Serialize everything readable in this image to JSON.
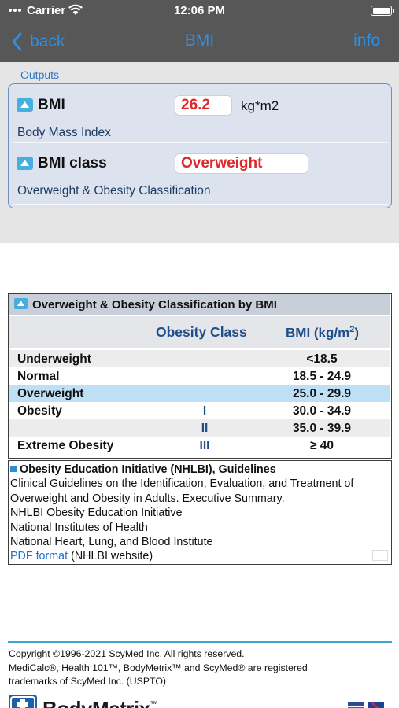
{
  "status_bar": {
    "carrier": "Carrier",
    "time": "12:06 PM"
  },
  "nav": {
    "back_label": "back",
    "title": "BMI",
    "info_label": "info"
  },
  "outputs": {
    "section_label": "Outputs",
    "items": [
      {
        "name": "BMI",
        "value": "26.2",
        "unit": "kg*m2",
        "description": "Body Mass Index"
      },
      {
        "name": "BMI class",
        "value": "Overweight",
        "unit": "",
        "description": "Overweight & Obesity Classification"
      }
    ]
  },
  "classification": {
    "title": "Overweight & Obesity Classification by BMI",
    "col_class": "Obesity Class",
    "col_bmi": "BMI (kg/m",
    "col_bmi_sup": "2",
    "col_bmi_close": ")",
    "highlighted_row": 2,
    "rows": [
      {
        "label": "Underweight",
        "class": "",
        "bmi": "<18.5"
      },
      {
        "label": "Normal",
        "class": "",
        "bmi": "18.5 - 24.9"
      },
      {
        "label": "Overweight",
        "class": "",
        "bmi": "25.0 - 29.9"
      },
      {
        "label": "Obesity",
        "class": "I",
        "bmi": "30.0 - 34.9"
      },
      {
        "label": "",
        "class": "II",
        "bmi": "35.0 - 39.9"
      },
      {
        "label": "Extreme Obesity",
        "class": "III",
        "bmi": "≥ 40"
      }
    ]
  },
  "references": {
    "title": "Obesity Education Initiative (NHLBI), Guidelines",
    "lines": [
      "Clinical Guidelines on the Identification, Evaluation, and Treatment of",
      "Overweight and Obesity in Adults. Executive Summary.",
      "NHLBI Obesity Education Initiative",
      "National Institutes of Health",
      "National Heart, Lung, and Blood Institute"
    ],
    "link_label": "PDF format",
    "link_suffix": " (NHLBI website)"
  },
  "footer": {
    "lines": [
      "Copyright ©1996-2021 ScyMed Inc. All rights reserved.",
      "MediCalc®, Health 101™, BodyMetrix™ and ScyMed® are registered",
      "trademarks of ScyMed Inc. (USPTO)"
    ],
    "brand": "BodyMetrix",
    "brand_tm": "™"
  },
  "colors": {
    "nav_bg": "#575757",
    "accent_blue": "#2f8fe0",
    "output_value_red": "#e0262a",
    "highlight_row": "#bde0f7",
    "class_text_blue": "#1f4e8c"
  },
  "icons": [
    "signal-dots-icon",
    "wifi-icon",
    "battery-icon",
    "chevron-left-icon",
    "triangle-up-icon",
    "square-bullet-icon",
    "bodymetrix-logo-icon",
    "flag-icon"
  ]
}
